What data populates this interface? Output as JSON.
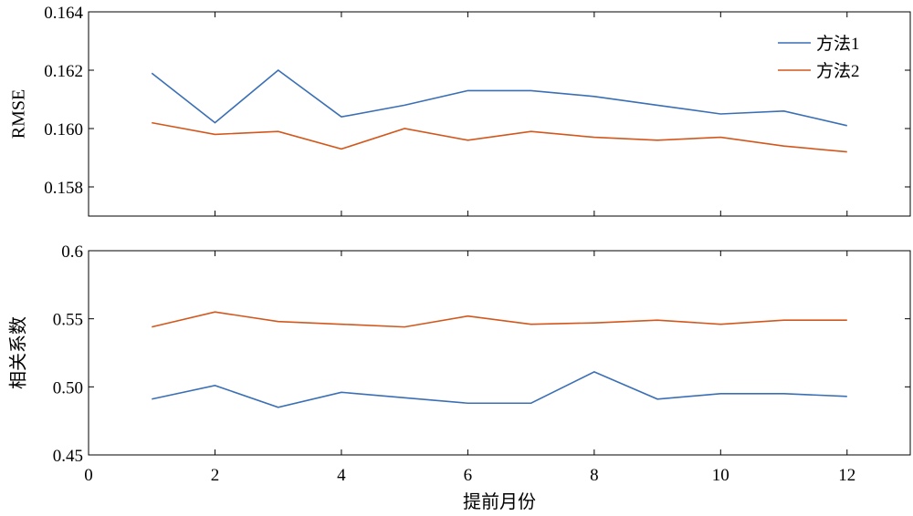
{
  "chart_data": [
    {
      "type": "line",
      "ylabel": "RMSE",
      "xlabel": "",
      "xlim": [
        0,
        13
      ],
      "ylim": [
        0.157,
        0.164
      ],
      "x_ticks": [
        "0",
        "2",
        "4",
        "6",
        "8",
        "10",
        "12"
      ],
      "x_tick_labels_visible": false,
      "y_ticks": [
        "0.158",
        "0.160",
        "0.162",
        "0.164"
      ],
      "x": [
        1,
        2,
        3,
        4,
        5,
        6,
        7,
        8,
        9,
        10,
        11,
        12
      ],
      "series": [
        {
          "name": "方法1",
          "color": "#3a6fb5",
          "values": [
            0.1619,
            0.1602,
            0.162,
            0.1604,
            0.1608,
            0.1613,
            0.1613,
            0.1611,
            0.1608,
            0.1605,
            0.1606,
            0.1601
          ]
        },
        {
          "name": "方法2",
          "color": "#d2571c",
          "values": [
            0.1602,
            0.1598,
            0.1599,
            0.1593,
            0.16,
            0.1596,
            0.1599,
            0.1597,
            0.1596,
            0.1597,
            0.1594,
            0.1592
          ]
        }
      ],
      "legend": {
        "position": "top-right",
        "entries": [
          "方法1",
          "方法2"
        ]
      },
      "grid": false
    },
    {
      "type": "line",
      "ylabel": "相关系数",
      "xlabel": "提前月份",
      "xlim": [
        0,
        13
      ],
      "ylim": [
        0.45,
        0.6
      ],
      "x_ticks": [
        "0",
        "2",
        "4",
        "6",
        "8",
        "10",
        "12"
      ],
      "x_tick_labels_visible": true,
      "y_ticks": [
        "0.45",
        "0.50",
        "0.55",
        "0.6"
      ],
      "x": [
        1,
        2,
        3,
        4,
        5,
        6,
        7,
        8,
        9,
        10,
        11,
        12
      ],
      "series": [
        {
          "name": "方法1",
          "color": "#3a6fb5",
          "values": [
            0.491,
            0.501,
            0.485,
            0.496,
            0.492,
            0.488,
            0.488,
            0.511,
            0.491,
            0.495,
            0.495,
            0.493
          ]
        },
        {
          "name": "方法2",
          "color": "#d2571c",
          "values": [
            0.544,
            0.555,
            0.548,
            0.546,
            0.544,
            0.552,
            0.546,
            0.547,
            0.549,
            0.546,
            0.549,
            0.549
          ]
        }
      ],
      "grid": false
    }
  ]
}
